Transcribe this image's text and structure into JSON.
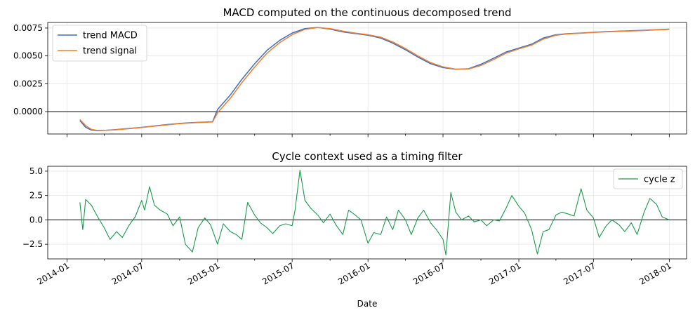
{
  "chart_data": [
    {
      "type": "line",
      "title": "MACD computed on the continuous decomposed trend",
      "xlabel": "",
      "ylabel": "",
      "xlim": [
        "2013-11-15",
        "2018-02-12"
      ],
      "ylim": [
        -0.002,
        0.008
      ],
      "yticks": [
        0.0,
        0.0025,
        0.005,
        0.0075
      ],
      "ytick_labels": [
        "0.0000",
        "0.0025",
        "0.0050",
        "0.0075"
      ],
      "grid": true,
      "legend": "upper-left",
      "reference_line": 0,
      "series": [
        {
          "name": "trend MACD",
          "color": "#3a6fc7",
          "x": [
            "2014-02-01",
            "2014-02-15",
            "2014-03-01",
            "2014-03-15",
            "2014-04-01",
            "2014-05-01",
            "2014-06-01",
            "2014-07-01",
            "2014-08-01",
            "2014-09-01",
            "2014-10-01",
            "2014-11-01",
            "2014-12-01",
            "2014-12-20",
            "2015-01-01",
            "2015-02-01",
            "2015-03-01",
            "2015-04-01",
            "2015-05-01",
            "2015-06-01",
            "2015-07-01",
            "2015-08-01",
            "2015-09-01",
            "2015-10-01",
            "2015-11-01",
            "2015-12-01",
            "2016-01-01",
            "2016-02-01",
            "2016-03-01",
            "2016-04-01",
            "2016-05-01",
            "2016-06-01",
            "2016-07-01",
            "2016-08-01",
            "2016-09-01",
            "2016-10-01",
            "2016-11-01",
            "2016-12-01",
            "2017-01-01",
            "2017-02-01",
            "2017-03-01",
            "2017-04-01",
            "2017-05-01",
            "2017-06-01",
            "2017-07-01",
            "2017-08-01",
            "2017-09-01",
            "2017-10-01",
            "2017-11-01",
            "2017-12-01",
            "2018-01-01"
          ],
          "y": [
            -0.0008,
            -0.0014,
            -0.00165,
            -0.0017,
            -0.00168,
            -0.0016,
            -0.0015,
            -0.0014,
            -0.00128,
            -0.00115,
            -0.00105,
            -0.00098,
            -0.00093,
            -0.0009,
            0.0002,
            0.0015,
            0.0029,
            0.0043,
            0.0055,
            0.0064,
            0.00705,
            0.00745,
            0.00755,
            0.0074,
            0.00715,
            0.007,
            0.00685,
            0.0066,
            0.00615,
            0.00555,
            0.0049,
            0.0043,
            0.00395,
            0.0038,
            0.00385,
            0.00425,
            0.0048,
            0.00535,
            0.0057,
            0.00605,
            0.0066,
            0.0069,
            0.007,
            0.00705,
            0.00712,
            0.00718,
            0.00722,
            0.00726,
            0.0073,
            0.00735,
            0.0074
          ]
        },
        {
          "name": "trend signal",
          "color": "#f07f2e",
          "x": [
            "2014-02-01",
            "2014-02-15",
            "2014-03-01",
            "2014-03-15",
            "2014-04-01",
            "2014-05-01",
            "2014-06-01",
            "2014-07-01",
            "2014-08-01",
            "2014-09-01",
            "2014-10-01",
            "2014-11-01",
            "2014-12-01",
            "2014-12-20",
            "2015-01-01",
            "2015-02-01",
            "2015-03-01",
            "2015-04-01",
            "2015-05-01",
            "2015-06-01",
            "2015-07-01",
            "2015-08-01",
            "2015-09-01",
            "2015-10-01",
            "2015-11-01",
            "2015-12-01",
            "2016-01-01",
            "2016-02-01",
            "2016-03-01",
            "2016-04-01",
            "2016-05-01",
            "2016-06-01",
            "2016-07-01",
            "2016-08-01",
            "2016-09-01",
            "2016-10-01",
            "2016-11-01",
            "2016-12-01",
            "2017-01-01",
            "2017-02-01",
            "2017-03-01",
            "2017-04-01",
            "2017-05-01",
            "2017-06-01",
            "2017-07-01",
            "2017-08-01",
            "2017-09-01",
            "2017-10-01",
            "2017-11-01",
            "2017-12-01",
            "2018-01-01"
          ],
          "y": [
            -0.0007,
            -0.00125,
            -0.00158,
            -0.00168,
            -0.00168,
            -0.00162,
            -0.00152,
            -0.00142,
            -0.0013,
            -0.00118,
            -0.00107,
            -0.001,
            -0.00095,
            -0.00092,
            -0.0001,
            0.0012,
            0.0026,
            0.004,
            0.00525,
            0.0062,
            0.0069,
            0.00738,
            0.00754,
            0.00745,
            0.00722,
            0.00705,
            0.0069,
            0.00668,
            0.00625,
            0.00566,
            0.005,
            0.0044,
            0.00402,
            0.00382,
            0.00382,
            0.00415,
            0.00468,
            0.00525,
            0.00563,
            0.00597,
            0.0065,
            0.00685,
            0.00698,
            0.00703,
            0.0071,
            0.00716,
            0.0072,
            0.00724,
            0.00728,
            0.00733,
            0.00738
          ]
        }
      ]
    },
    {
      "type": "line",
      "title": "Cycle context used as a timing filter",
      "xlabel": "Date",
      "ylabel": "",
      "xlim": [
        "2013-11-15",
        "2018-02-12"
      ],
      "ylim": [
        -4.0,
        5.5
      ],
      "yticks": [
        -2.5,
        0.0,
        2.5,
        5.0
      ],
      "ytick_labels": [
        "−2.5",
        "0.0",
        "2.5",
        "5.0"
      ],
      "xticks": [
        "2014-01-01",
        "2014-07-01",
        "2015-01-01",
        "2015-07-01",
        "2016-01-01",
        "2016-07-01",
        "2017-01-01",
        "2017-07-01",
        "2018-01-01"
      ],
      "xtick_labels": [
        "2014-01",
        "2014-07",
        "2015-01",
        "2015-07",
        "2016-01",
        "2016-07",
        "2017-01",
        "2017-07",
        "2018-01"
      ],
      "grid": true,
      "legend": "upper-right",
      "reference_line": 0,
      "series": [
        {
          "name": "cycle z",
          "color": "#1a9a4a",
          "x": [
            "2014-02-01",
            "2014-02-08",
            "2014-02-15",
            "2014-03-01",
            "2014-03-15",
            "2014-04-01",
            "2014-04-15",
            "2014-05-01",
            "2014-05-15",
            "2014-06-01",
            "2014-06-15",
            "2014-07-01",
            "2014-07-08",
            "2014-07-20",
            "2014-08-01",
            "2014-08-15",
            "2014-09-01",
            "2014-09-15",
            "2014-10-01",
            "2014-10-15",
            "2014-11-01",
            "2014-11-15",
            "2014-12-01",
            "2014-12-15",
            "2015-01-01",
            "2015-01-15",
            "2015-02-01",
            "2015-02-15",
            "2015-03-01",
            "2015-03-15",
            "2015-04-01",
            "2015-04-15",
            "2015-05-01",
            "2015-05-15",
            "2015-06-01",
            "2015-06-15",
            "2015-07-01",
            "2015-07-08",
            "2015-07-20",
            "2015-08-01",
            "2015-08-15",
            "2015-09-01",
            "2015-09-15",
            "2015-10-01",
            "2015-10-15",
            "2015-11-01",
            "2015-11-15",
            "2015-12-01",
            "2015-12-15",
            "2016-01-01",
            "2016-01-15",
            "2016-02-01",
            "2016-02-15",
            "2016-03-01",
            "2016-03-15",
            "2016-04-01",
            "2016-04-15",
            "2016-05-01",
            "2016-05-15",
            "2016-06-01",
            "2016-06-15",
            "2016-07-01",
            "2016-07-08",
            "2016-07-20",
            "2016-08-01",
            "2016-08-15",
            "2016-09-01",
            "2016-09-15",
            "2016-10-01",
            "2016-10-15",
            "2016-11-01",
            "2016-11-15",
            "2016-12-01",
            "2016-12-15",
            "2017-01-01",
            "2017-01-15",
            "2017-02-01",
            "2017-02-15",
            "2017-03-01",
            "2017-03-15",
            "2017-04-01",
            "2017-04-15",
            "2017-05-01",
            "2017-05-15",
            "2017-06-01",
            "2017-06-15",
            "2017-07-01",
            "2017-07-15",
            "2017-08-01",
            "2017-08-15",
            "2017-09-01",
            "2017-09-15",
            "2017-10-01",
            "2017-10-15",
            "2017-11-01",
            "2017-11-15",
            "2017-12-01",
            "2017-12-15",
            "2018-01-01"
          ],
          "y": [
            1.8,
            -1.0,
            2.1,
            1.5,
            0.4,
            -0.8,
            -2.0,
            -1.2,
            -1.8,
            -0.5,
            0.3,
            2.0,
            1.0,
            3.4,
            1.5,
            1.0,
            0.6,
            -0.6,
            0.3,
            -2.5,
            -3.3,
            -0.8,
            0.2,
            -0.5,
            -2.5,
            -0.4,
            -1.2,
            -1.5,
            -2.0,
            1.8,
            0.5,
            -0.3,
            -0.8,
            -1.4,
            -0.6,
            -0.4,
            -0.6,
            1.0,
            5.1,
            2.0,
            1.2,
            0.5,
            -0.3,
            0.6,
            -0.5,
            -1.5,
            1.0,
            0.5,
            0.0,
            -2.4,
            -1.3,
            -1.5,
            0.3,
            -1.0,
            1.0,
            0.0,
            -1.5,
            0.2,
            1.0,
            -0.3,
            -1.0,
            -2.0,
            -3.6,
            2.8,
            0.8,
            0.0,
            0.4,
            -0.2,
            0.0,
            -0.6,
            0.0,
            -0.1,
            1.2,
            2.5,
            1.4,
            0.7,
            -1.0,
            -3.5,
            -1.2,
            -1.0,
            0.5,
            0.8,
            0.6,
            0.4,
            3.2,
            1.0,
            0.2,
            -1.8,
            -0.6,
            0.0,
            -0.5,
            -1.2,
            -0.3,
            -1.5,
            0.8,
            2.2,
            1.6,
            0.3,
            0.0
          ]
        }
      ]
    }
  ]
}
